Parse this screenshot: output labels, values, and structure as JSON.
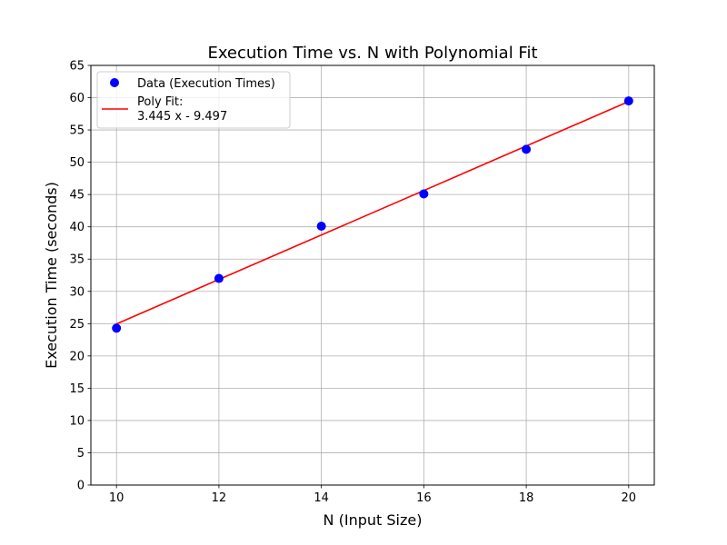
{
  "chart_data": {
    "type": "scatter",
    "title": "Execution Time vs. N with Polynomial Fit",
    "xlabel": "N (Input Size)",
    "ylabel": "Execution Time (seconds)",
    "xlim": [
      9.5,
      20.5
    ],
    "ylim": [
      0,
      65
    ],
    "xticks": [
      10,
      12,
      14,
      16,
      18,
      20
    ],
    "yticks": [
      0,
      5,
      10,
      15,
      20,
      25,
      30,
      35,
      40,
      45,
      50,
      55,
      60,
      65
    ],
    "grid": true,
    "legend_position": "top-left",
    "series": [
      {
        "name": "Data (Execution Times)",
        "kind": "points",
        "color": "#0000ff",
        "x": [
          10,
          12,
          14,
          16,
          18,
          20
        ],
        "y": [
          24.3,
          32.0,
          40.1,
          45.1,
          52.0,
          59.5
        ]
      },
      {
        "name": "Poly Fit:",
        "equation": "3.445 x - 9.497",
        "kind": "line",
        "color": "#ff0000",
        "slope": 3.445,
        "intercept": -9.497,
        "x_range": [
          10,
          20
        ]
      }
    ]
  }
}
